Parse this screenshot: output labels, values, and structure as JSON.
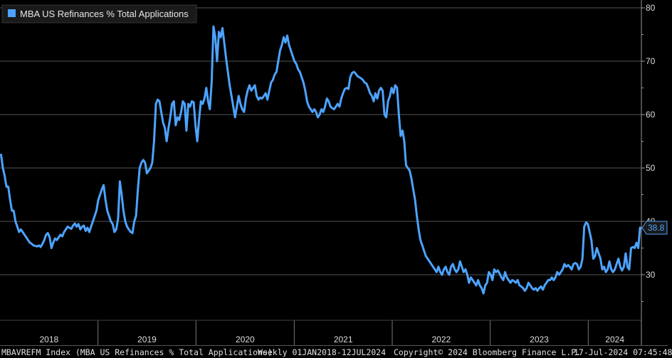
{
  "chart_data": {
    "type": "line",
    "title": "",
    "xlabel": "",
    "ylabel": "",
    "series": [
      {
        "name": "MBA US Refinances % Total Applications",
        "color": "#4da3ff",
        "x_start": "2018-01-05",
        "x_end": "2024-07-12",
        "values": [
          52.5,
          50.0,
          48.5,
          46.5,
          46.5,
          44.0,
          42.0,
          42.0,
          40.0,
          39.0,
          38.0,
          38.5,
          38.0,
          37.5,
          37.0,
          36.5,
          36.0,
          35.8,
          35.5,
          35.4,
          35.3,
          35.5,
          35.2,
          35.8,
          36.5,
          37.5,
          37.8,
          37.0,
          35.0,
          36.0,
          36.8,
          36.5,
          37.0,
          37.5,
          37.2,
          38.0,
          38.5,
          39.0,
          38.8,
          38.6,
          39.2,
          39.6,
          39.0,
          39.5,
          38.5,
          39.0,
          39.2,
          38.2,
          38.8,
          38.0,
          39.0,
          40.0,
          41.0,
          42.0,
          44.0,
          45.0,
          46.0,
          46.8,
          44.0,
          42.0,
          41.0,
          40.0,
          39.5,
          38.0,
          38.5,
          40.5,
          47.5,
          45.0,
          42.0,
          40.0,
          39.0,
          38.5,
          38.0,
          37.8,
          40.0,
          41.0,
          46.0,
          50.0,
          51.0,
          51.5,
          51.0,
          49.0,
          49.5,
          50.0,
          51.0,
          55.0,
          62.0,
          62.8,
          62.5,
          60.5,
          58.5,
          57.5,
          55.0,
          57.5,
          59.5,
          62.0,
          62.5,
          58.0,
          59.5,
          59.0,
          60.5,
          62.5,
          62.0,
          57.0,
          62.0,
          61.5,
          62.5,
          62.3,
          58.0,
          55.0,
          59.0,
          62.5,
          62.0,
          63.0,
          65.0,
          62.5,
          61.0,
          66.0,
          76.5,
          74.5,
          70.0,
          75.5,
          74.5,
          76.2,
          73.5,
          70.5,
          68.0,
          65.5,
          63.5,
          61.5,
          59.5,
          61.5,
          63.5,
          62.0,
          61.0,
          60.5,
          63.0,
          64.5,
          65.5,
          64.5,
          65.0,
          65.5,
          63.5,
          62.8,
          63.2,
          63.0,
          63.5,
          64.0,
          62.8,
          64.5,
          66.0,
          66.5,
          67.5,
          68.0,
          70.0,
          72.0,
          73.0,
          74.5,
          73.5,
          74.8,
          73.0,
          72.0,
          71.0,
          70.0,
          69.5,
          68.5,
          68.0,
          67.0,
          66.0,
          64.5,
          62.5,
          61.5,
          61.0,
          60.5,
          61.0,
          60.5,
          59.5,
          60.0,
          61.0,
          60.5,
          61.5,
          63.0,
          62.5,
          61.5,
          61.2,
          61.0,
          61.5,
          62.0,
          61.5,
          63.0,
          64.0,
          64.8,
          65.0,
          64.8,
          67.0,
          67.8,
          68.0,
          67.7,
          67.2,
          67.0,
          66.8,
          66.5,
          66.0,
          65.8,
          65.0,
          64.0,
          63.5,
          62.5,
          64.0,
          63.0,
          64.5,
          65.0,
          64.5,
          60.0,
          59.5,
          62.5,
          63.5,
          65.0,
          64.0,
          65.5,
          65.0,
          60.0,
          56.0,
          57.0,
          55.0,
          50.5,
          50.0,
          49.5,
          48.0,
          46.0,
          44.0,
          41.0,
          38.5,
          36.5,
          35.5,
          34.5,
          33.5,
          33.0,
          32.5,
          32.0,
          31.5,
          31.0,
          30.5,
          31.5,
          30.5,
          30.0,
          31.0,
          31.5,
          30.5,
          30.0,
          31.5,
          32.0,
          31.0,
          30.5,
          31.0,
          32.5,
          31.5,
          30.5,
          31.0,
          30.0,
          28.5,
          29.5,
          29.0,
          28.5,
          28.0,
          29.0,
          28.0,
          27.5,
          26.5,
          28.0,
          28.5,
          30.5,
          30.0,
          29.0,
          31.0,
          30.5,
          30.8,
          30.2,
          29.5,
          29.0,
          30.5,
          29.5,
          29.0,
          28.5,
          29.0,
          28.8,
          28.5,
          29.0,
          28.0,
          27.8,
          27.5,
          27.0,
          27.5,
          28.5,
          28.0,
          27.5,
          27.2,
          27.5,
          27.0,
          27.5,
          27.8,
          27.2,
          28.0,
          28.5,
          29.0,
          29.0,
          29.5,
          29.0,
          29.5,
          30.5,
          30.0,
          30.5,
          31.0,
          32.0,
          31.5,
          31.8,
          31.5,
          31.0,
          32.0,
          32.2,
          32.0,
          31.0,
          31.5,
          33.0,
          39.0,
          39.8,
          39.5,
          38.0,
          36.5,
          33.0,
          33.5,
          35.0,
          34.0,
          33.0,
          31.0,
          31.5,
          30.5,
          31.0,
          32.5,
          31.0,
          30.5,
          31.0,
          32.0,
          33.0,
          31.5,
          30.8,
          31.5,
          34.0,
          31.5,
          31.0,
          35.0,
          35.2,
          35.0,
          36.0,
          35.0,
          38.8
        ]
      }
    ],
    "yticks": [
      30,
      40,
      50,
      60,
      70,
      80
    ],
    "ylim": [
      22,
      81
    ],
    "xticks": [
      "2018",
      "2019",
      "2020",
      "2021",
      "2022",
      "2023",
      "2024"
    ],
    "last_value_label": "38.8",
    "grid": true,
    "legend_position": "top-left"
  },
  "footer": {
    "ticker": "MBAVREFM Index (MBA US Refinances % Total Applications)",
    "range": "Weekly 01JAN2018-12JUL2024",
    "copyright": "Copyright© 2024 Bloomberg Finance L.P.",
    "timestamp": "17-Jul-2024 07:45:48"
  }
}
